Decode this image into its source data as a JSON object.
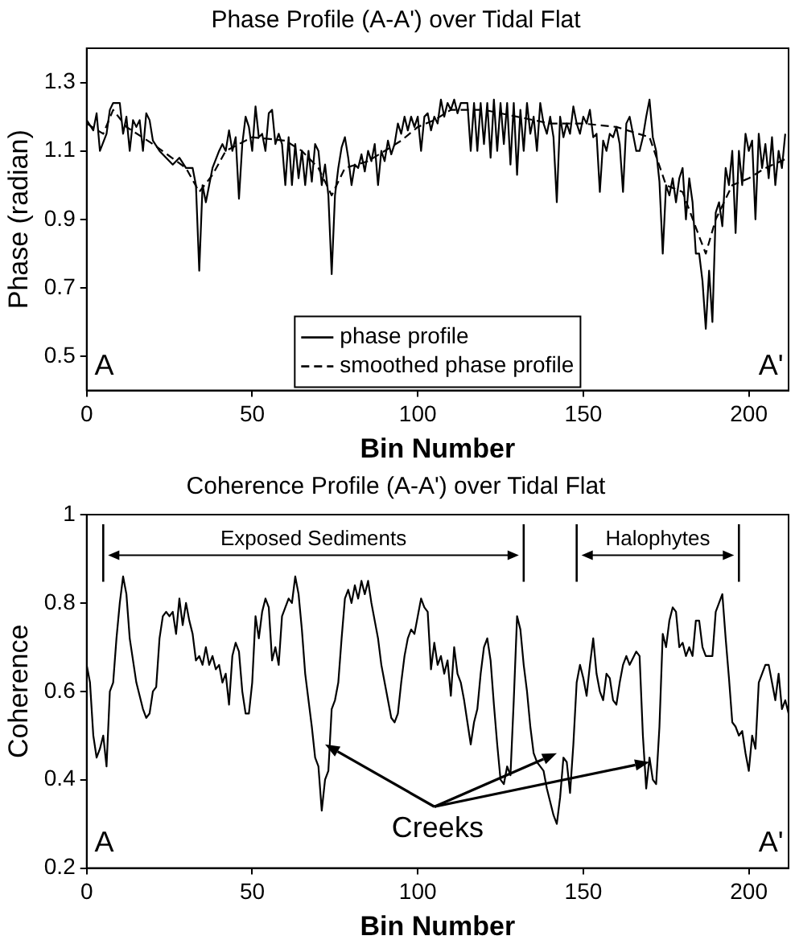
{
  "chart_data": [
    {
      "type": "line",
      "title": "Phase Profile (A-A') over Tidal Flat",
      "xlabel": "Bin Number",
      "ylabel": "Phase (radian)",
      "xlim": [
        0,
        212
      ],
      "xticks": [
        0,
        50,
        100,
        150,
        200
      ],
      "ylim": [
        0.4,
        1.4
      ],
      "yticks": [
        0.5,
        0.7,
        0.9,
        1.1,
        1.3
      ],
      "grid": false,
      "legend": "bottom",
      "marker": "none",
      "annotations": [
        "A",
        "A'"
      ],
      "series": [
        {
          "name": "phase profile",
          "color": "#000000",
          "line_style": "solid",
          "x": [
            0,
            2,
            3,
            4,
            6,
            7,
            8,
            10,
            11,
            12,
            13,
            14,
            15,
            16,
            17,
            18,
            19,
            20,
            22,
            24,
            26,
            28,
            30,
            32,
            33,
            34,
            35,
            36,
            37,
            38,
            40,
            41,
            42,
            43,
            44,
            45,
            46,
            47,
            48,
            49,
            50,
            51,
            52,
            53,
            54,
            55,
            56,
            57,
            58,
            59,
            60,
            61,
            62,
            63,
            64,
            65,
            66,
            67,
            68,
            69,
            70,
            71,
            72,
            73,
            74,
            75,
            76,
            77,
            78,
            79,
            80,
            81,
            82,
            83,
            84,
            85,
            86,
            87,
            88,
            89,
            90,
            91,
            92,
            93,
            94,
            95,
            96,
            97,
            98,
            99,
            100,
            101,
            102,
            103,
            104,
            105,
            106,
            107,
            108,
            109,
            110,
            111,
            112,
            113,
            114,
            115,
            116,
            117,
            118,
            119,
            120,
            121,
            122,
            123,
            124,
            125,
            126,
            127,
            128,
            129,
            130,
            131,
            132,
            133,
            134,
            135,
            136,
            137,
            138,
            139,
            140,
            141,
            142,
            143,
            144,
            145,
            146,
            147,
            148,
            149,
            150,
            151,
            152,
            153,
            154,
            155,
            156,
            157,
            158,
            159,
            160,
            161,
            162,
            163,
            164,
            165,
            166,
            167,
            168,
            169,
            170,
            171,
            172,
            173,
            174,
            175,
            176,
            177,
            178,
            179,
            180,
            181,
            182,
            183,
            184,
            185,
            186,
            187,
            188,
            189,
            190,
            191,
            192,
            193,
            194,
            195,
            196,
            197,
            198,
            199,
            200,
            201,
            202,
            203,
            204,
            205,
            206,
            207,
            208,
            209,
            210,
            211
          ],
          "values": [
            1.19,
            1.16,
            1.21,
            1.1,
            1.15,
            1.22,
            1.24,
            1.24,
            1.15,
            1.2,
            1.1,
            1.19,
            1.17,
            1.19,
            1.1,
            1.21,
            1.19,
            1.13,
            1.1,
            1.08,
            1.06,
            1.08,
            1.05,
            1.05,
            1.0,
            0.75,
            1.0,
            0.95,
            1.0,
            1.05,
            1.1,
            1.12,
            1.1,
            1.16,
            1.1,
            1.14,
            0.96,
            1.12,
            1.2,
            1.17,
            1.1,
            1.23,
            1.14,
            1.15,
            1.1,
            1.21,
            1.22,
            1.12,
            1.15,
            1.12,
            1.0,
            1.14,
            1.0,
            1.12,
            1.02,
            1.1,
            1.0,
            1.1,
            1.01,
            1.12,
            1.1,
            1.0,
            1.06,
            0.97,
            0.74,
            0.97,
            1.05,
            1.11,
            1.14,
            1.08,
            1.0,
            1.06,
            1.05,
            1.09,
            1.04,
            1.1,
            1.07,
            1.12,
            1.0,
            1.1,
            1.07,
            1.13,
            1.09,
            1.12,
            1.18,
            1.15,
            1.2,
            1.16,
            1.2,
            1.17,
            1.2,
            1.1,
            1.2,
            1.21,
            1.16,
            1.2,
            1.18,
            1.25,
            1.2,
            1.24,
            1.22,
            1.25,
            1.21,
            1.24,
            1.24,
            1.24,
            1.1,
            1.24,
            1.1,
            1.24,
            1.12,
            1.24,
            1.08,
            1.25,
            1.1,
            1.24,
            1.12,
            1.24,
            1.06,
            1.24,
            1.03,
            1.22,
            1.1,
            1.24,
            1.15,
            1.2,
            1.1,
            1.24,
            1.18,
            1.15,
            1.2,
            1.14,
            0.95,
            1.2,
            1.14,
            1.18,
            1.15,
            1.23,
            1.18,
            1.15,
            1.2,
            1.18,
            1.22,
            1.14,
            1.15,
            0.98,
            1.13,
            1.1,
            1.15,
            1.14,
            1.17,
            1.12,
            0.98,
            1.18,
            1.2,
            1.15,
            1.1,
            1.1,
            1.14,
            1.2,
            1.25,
            1.14,
            1.1,
            1.01,
            0.8,
            1.0,
            0.97,
            1.02,
            0.95,
            1.02,
            1.05,
            0.9,
            1.02,
            0.95,
            0.8,
            0.8,
            0.72,
            0.58,
            0.75,
            0.6,
            0.92,
            0.95,
            0.88,
            1.05,
            1.0,
            1.1,
            0.86,
            1.1,
            1.0,
            1.15,
            1.1,
            1.13,
            0.9,
            1.15,
            1.05,
            1.12,
            1.02,
            1.14,
            1.0,
            1.1,
            1.05,
            1.15
          ]
        },
        {
          "name": "smoothed phase profile",
          "color": "#000000",
          "line_style": "dashed",
          "x": [
            0,
            5,
            8,
            12,
            20,
            30,
            34,
            38,
            42,
            50,
            60,
            65,
            70,
            74,
            78,
            85,
            95,
            100,
            105,
            110,
            120,
            130,
            140,
            150,
            160,
            170,
            175,
            180,
            185,
            187,
            190,
            195,
            200,
            205,
            212
          ],
          "values": [
            1.18,
            1.15,
            1.22,
            1.17,
            1.12,
            1.05,
            0.98,
            1.03,
            1.1,
            1.14,
            1.13,
            1.1,
            1.05,
            0.97,
            1.05,
            1.07,
            1.13,
            1.17,
            1.19,
            1.22,
            1.22,
            1.2,
            1.18,
            1.18,
            1.17,
            1.14,
            1.0,
            0.98,
            0.85,
            0.8,
            0.9,
            1.0,
            1.02,
            1.05,
            1.08
          ]
        }
      ]
    },
    {
      "type": "line",
      "title": "Coherence Profile (A-A') over Tidal Flat",
      "xlabel": "Bin Number",
      "ylabel": "Coherence",
      "xlim": [
        0,
        212
      ],
      "xticks": [
        0,
        50,
        100,
        150,
        200
      ],
      "ylim": [
        0.2,
        1
      ],
      "yticks": [
        0.2,
        0.4,
        0.6,
        0.8,
        1
      ],
      "grid": false,
      "marker": "none",
      "ref_lines": [
        {
          "axis": "x",
          "value": 5,
          "color": "#000000"
        },
        {
          "axis": "x",
          "value": 132,
          "color": "#000000"
        },
        {
          "axis": "x",
          "value": 148,
          "color": "#000000"
        },
        {
          "axis": "x",
          "value": 197,
          "color": "#000000"
        }
      ],
      "annotations": [
        "A",
        "A'",
        {
          "text": "Creeks",
          "x": 72,
          "y": 0.48
        },
        "Exposed Sediments",
        "Halophytes"
      ],
      "series": [
        {
          "color": "#000000",
          "line_style": "solid",
          "x": [
            0,
            1,
            2,
            3,
            4,
            5,
            6,
            7,
            8,
            9,
            10,
            11,
            12,
            13,
            15,
            17,
            18,
            19,
            20,
            21,
            22,
            23,
            24,
            25,
            26,
            27,
            28,
            29,
            30,
            31,
            32,
            33,
            34,
            35,
            36,
            37,
            38,
            39,
            40,
            41,
            42,
            43,
            44,
            45,
            46,
            47,
            48,
            49,
            50,
            51,
            52,
            53,
            54,
            55,
            56,
            57,
            58,
            59,
            60,
            61,
            62,
            63,
            64,
            65,
            66,
            67,
            68,
            69,
            70,
            71,
            72,
            73,
            74,
            75,
            76,
            77,
            78,
            79,
            80,
            81,
            82,
            83,
            84,
            85,
            86,
            87,
            88,
            89,
            90,
            91,
            92,
            93,
            94,
            95,
            96,
            97,
            98,
            99,
            100,
            101,
            102,
            103,
            104,
            105,
            106,
            107,
            108,
            109,
            110,
            111,
            112,
            113,
            114,
            115,
            116,
            117,
            118,
            119,
            120,
            121,
            122,
            123,
            124,
            125,
            126,
            127,
            128,
            129,
            130,
            131,
            132,
            133,
            134,
            135,
            136,
            137,
            138,
            139,
            140,
            141,
            142,
            143,
            144,
            145,
            146,
            147,
            148,
            149,
            150,
            151,
            152,
            153,
            154,
            155,
            156,
            157,
            158,
            159,
            160,
            161,
            162,
            163,
            164,
            166,
            167,
            168,
            169,
            170,
            171,
            172,
            173,
            174,
            175,
            176,
            177,
            178,
            179,
            180,
            181,
            182,
            183,
            184,
            185,
            186,
            187,
            188,
            189,
            190,
            191,
            192,
            193,
            194,
            195,
            196,
            197,
            198,
            199,
            200,
            201,
            202,
            203,
            204,
            205,
            206,
            207,
            208,
            209,
            210,
            211,
            212
          ],
          "values": [
            0.66,
            0.62,
            0.5,
            0.45,
            0.47,
            0.5,
            0.43,
            0.6,
            0.62,
            0.72,
            0.8,
            0.86,
            0.82,
            0.72,
            0.62,
            0.56,
            0.54,
            0.55,
            0.6,
            0.61,
            0.72,
            0.77,
            0.78,
            0.77,
            0.78,
            0.73,
            0.81,
            0.75,
            0.8,
            0.76,
            0.73,
            0.67,
            0.68,
            0.66,
            0.7,
            0.66,
            0.68,
            0.65,
            0.66,
            0.62,
            0.64,
            0.57,
            0.68,
            0.71,
            0.69,
            0.6,
            0.55,
            0.55,
            0.62,
            0.77,
            0.72,
            0.78,
            0.81,
            0.79,
            0.67,
            0.7,
            0.66,
            0.77,
            0.79,
            0.81,
            0.8,
            0.86,
            0.82,
            0.74,
            0.64,
            0.58,
            0.52,
            0.45,
            0.43,
            0.33,
            0.4,
            0.42,
            0.56,
            0.58,
            0.62,
            0.72,
            0.81,
            0.83,
            0.8,
            0.84,
            0.81,
            0.85,
            0.82,
            0.85,
            0.8,
            0.76,
            0.72,
            0.66,
            0.62,
            0.58,
            0.54,
            0.53,
            0.55,
            0.62,
            0.68,
            0.72,
            0.74,
            0.73,
            0.77,
            0.81,
            0.79,
            0.78,
            0.65,
            0.71,
            0.66,
            0.68,
            0.64,
            0.67,
            0.59,
            0.7,
            0.64,
            0.62,
            0.58,
            0.53,
            0.48,
            0.53,
            0.56,
            0.64,
            0.7,
            0.72,
            0.67,
            0.57,
            0.48,
            0.4,
            0.39,
            0.43,
            0.41,
            0.58,
            0.77,
            0.74,
            0.66,
            0.6,
            0.52,
            0.46,
            0.44,
            0.43,
            0.42,
            0.38,
            0.35,
            0.32,
            0.3,
            0.36,
            0.45,
            0.44,
            0.37,
            0.48,
            0.62,
            0.66,
            0.63,
            0.59,
            0.66,
            0.72,
            0.64,
            0.6,
            0.58,
            0.64,
            0.63,
            0.58,
            0.57,
            0.62,
            0.66,
            0.68,
            0.66,
            0.69,
            0.68,
            0.5,
            0.38,
            0.45,
            0.4,
            0.39,
            0.52,
            0.73,
            0.7,
            0.76,
            0.79,
            0.78,
            0.7,
            0.71,
            0.68,
            0.7,
            0.68,
            0.76,
            0.76,
            0.7,
            0.68,
            0.68,
            0.68,
            0.78,
            0.8,
            0.82,
            0.72,
            0.63,
            0.53,
            0.52,
            0.5,
            0.51,
            0.46,
            0.42,
            0.5,
            0.47,
            0.62,
            0.64,
            0.66,
            0.66,
            0.62,
            0.58,
            0.64,
            0.56,
            0.58,
            0.55
          ]
        }
      ]
    }
  ]
}
